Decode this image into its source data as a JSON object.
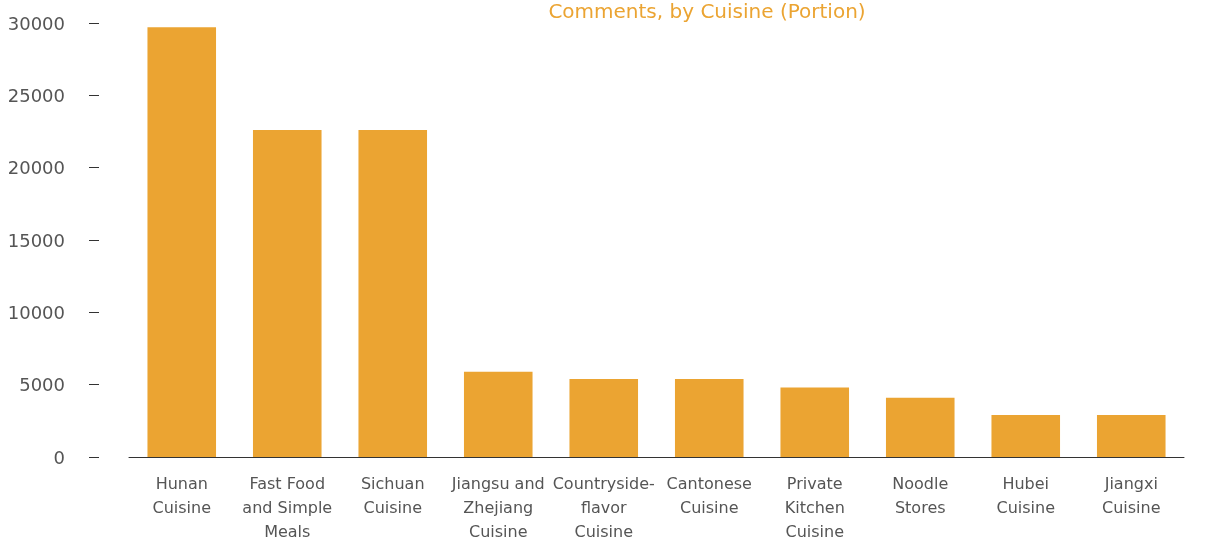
{
  "chart_data": {
    "type": "bar",
    "title": "Comments, by Cuisine (Portion)",
    "categories": [
      "Hunan Cuisine",
      "Fast Food and Simple Meals",
      "Sichuan Cuisine",
      "Jiangsu and Zhejiang Cuisine",
      "Countryside-flavor Cuisine",
      "Cantonese Cuisine",
      "Private Kitchen Cuisine",
      "Noodle Stores",
      "Hubei Cuisine",
      "Jiangxi Cuisine"
    ],
    "values": [
      29700,
      22600,
      22600,
      5900,
      5400,
      5400,
      4800,
      4100,
      2900,
      2900
    ],
    "color": "#eba432",
    "ylim": [
      0,
      30000
    ],
    "yticks": [
      0,
      5000,
      10000,
      15000,
      20000,
      25000,
      30000
    ],
    "grid": false
  }
}
